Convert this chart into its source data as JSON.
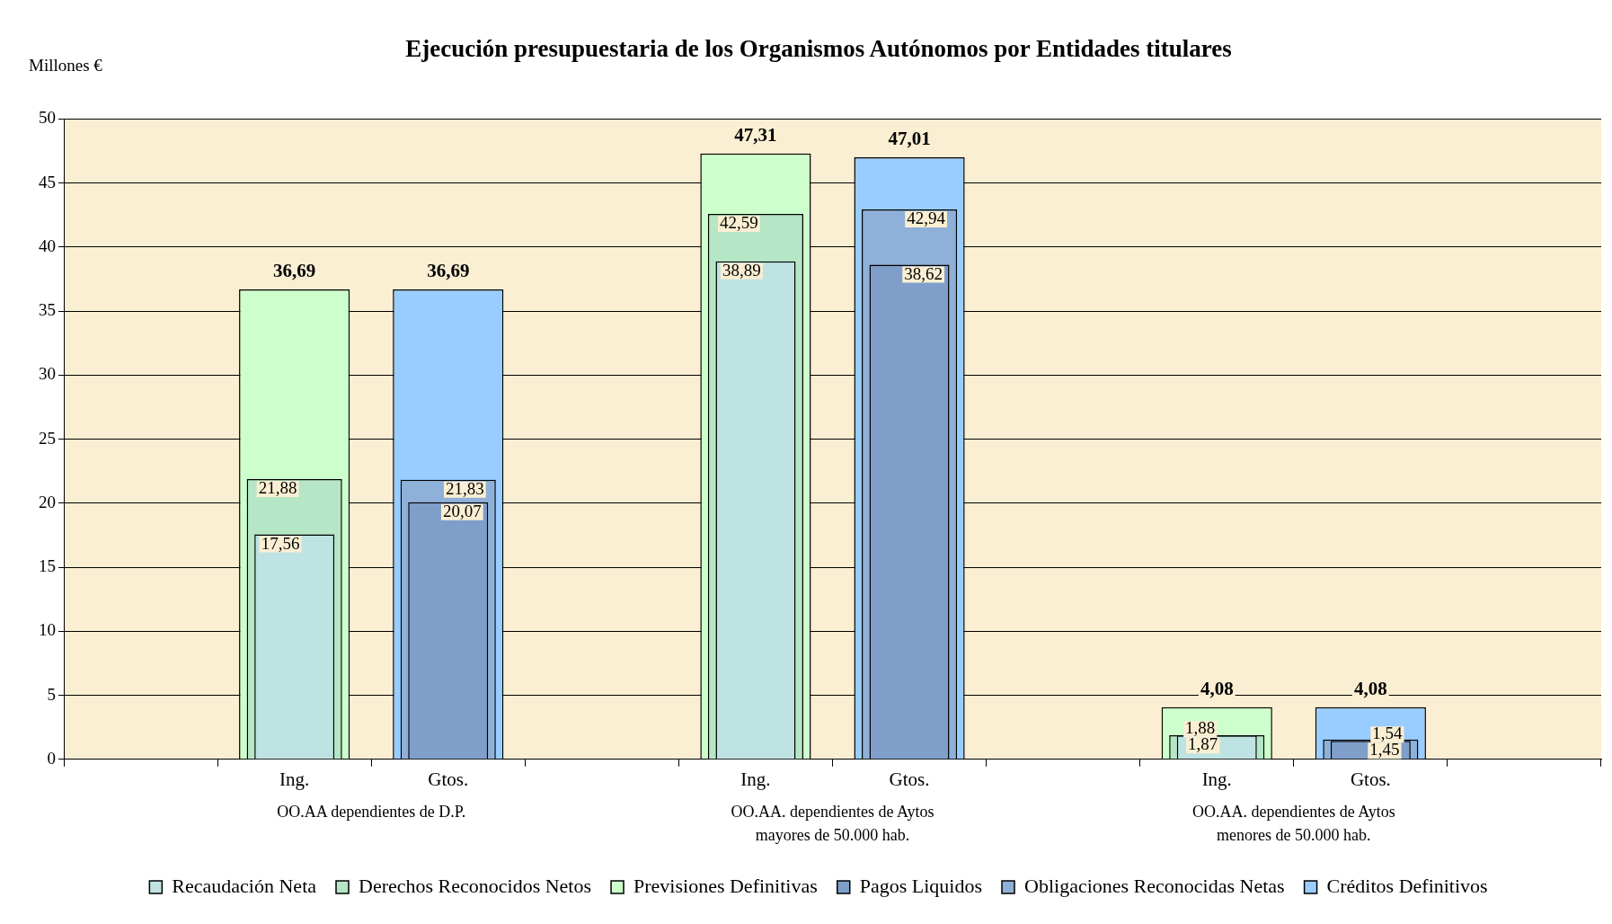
{
  "chart_data": {
    "type": "bar",
    "title": "Ejecución presupuestaria de los Organismos Autónomos por Entidades titulares",
    "ylabel": "Millones €",
    "categories": [
      null,
      "Ing.",
      "Gtos.",
      null,
      "Ing.",
      "Gtos.",
      null,
      "Ing.",
      "Gtos.",
      null
    ],
    "ylim": [
      0,
      50
    ],
    "yticks": [
      0,
      5,
      10,
      15,
      20,
      25,
      30,
      35,
      40,
      45,
      50
    ],
    "grid": "y",
    "legend": "bottom",
    "annotations": [
      "OO.AA dependientes de D.P.",
      "OO.AA. dependientes de Aytos mayores de 50.000 hab.",
      "OO.AA. dependientes de Aytos menores de 50.000 hab."
    ],
    "series": [
      {
        "name": "Recaudación Neta",
        "color": "#bfe3e3",
        "values": [
          null,
          17.56,
          null,
          null,
          38.89,
          null,
          null,
          1.87,
          null,
          null
        ],
        "value_labels": [
          null,
          "17,56",
          null,
          null,
          "38,89",
          null,
          null,
          "1,87",
          null,
          null
        ]
      },
      {
        "name": "Derechos Reconocidos Netos",
        "color": "#b5e6c6",
        "values": [
          null,
          21.88,
          null,
          null,
          42.59,
          null,
          null,
          1.88,
          null,
          null
        ],
        "value_labels": [
          null,
          "21,88",
          null,
          null,
          "42,59",
          null,
          null,
          "1,88",
          null,
          null
        ]
      },
      {
        "name": "Previsiones Definitivas",
        "color": "#ccffcc",
        "values": [
          null,
          36.69,
          null,
          null,
          47.31,
          null,
          null,
          4.08,
          null,
          null
        ],
        "value_labels": [
          null,
          "36,69",
          null,
          null,
          "47,31",
          null,
          null,
          "4,08",
          null,
          null
        ]
      },
      {
        "name": "Pagos Liquidos",
        "color": "#7f9fca",
        "values": [
          null,
          null,
          20.07,
          null,
          null,
          38.62,
          null,
          null,
          1.45,
          null
        ],
        "value_labels": [
          null,
          null,
          "20,07",
          null,
          null,
          "38,62",
          null,
          null,
          "1,45",
          null
        ]
      },
      {
        "name": "Obligaciones Reconocidas Netas",
        "color": "#8fb0d8",
        "values": [
          null,
          null,
          21.83,
          null,
          null,
          42.94,
          null,
          null,
          1.54,
          null
        ],
        "value_labels": [
          null,
          null,
          "21,83",
          null,
          null,
          "42,94",
          null,
          null,
          "1,54",
          null
        ]
      },
      {
        "name": "Créditos Definitivos",
        "color": "#99ccff",
        "values": [
          null,
          null,
          36.69,
          null,
          null,
          47.01,
          null,
          null,
          4.08,
          null
        ],
        "value_labels": [
          null,
          null,
          "36,69",
          null,
          null,
          "47,01",
          null,
          null,
          "4,08",
          null
        ]
      }
    ]
  }
}
